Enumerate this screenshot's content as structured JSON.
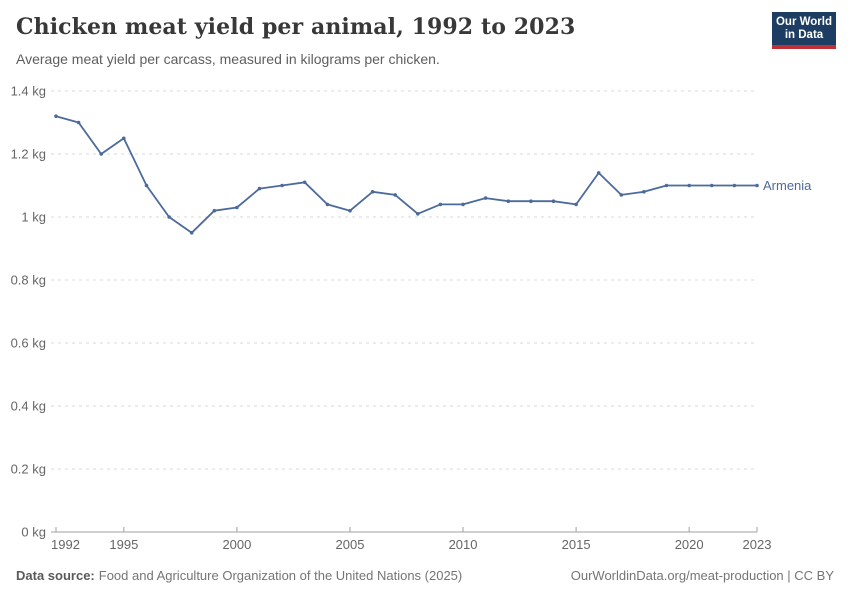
{
  "header": {
    "title": "Chicken meat yield per animal, 1992 to 2023",
    "subtitle": "Average meat yield per carcass, measured in kilograms per chicken.",
    "logo": {
      "line1": "Our World",
      "line2": "in Data"
    }
  },
  "chart_data": {
    "type": "line",
    "title": "Chicken meat yield per animal, 1992 to 2023",
    "unit": "kg",
    "xlim": [
      1992,
      2023
    ],
    "ylim": [
      0,
      1.4
    ],
    "x_ticks": [
      1992,
      1995,
      2000,
      2005,
      2010,
      2015,
      2020,
      2023
    ],
    "y_ticks": [
      0,
      0.2,
      0.4,
      0.6,
      0.8,
      1,
      1.2,
      1.4
    ],
    "y_tick_labels": [
      "0 kg",
      "0.2 kg",
      "0.4 kg",
      "0.6 kg",
      "0.8 kg",
      "1 kg",
      "1.2 kg",
      "1.4 kg"
    ],
    "grid": "dashed-horizontal",
    "legend_position": "end-of-line-label",
    "series": [
      {
        "name": "Armenia",
        "color": "#4C6A9C",
        "x": [
          1992,
          1993,
          1994,
          1995,
          1996,
          1997,
          1998,
          1999,
          2000,
          2001,
          2002,
          2003,
          2004,
          2005,
          2006,
          2007,
          2008,
          2009,
          2010,
          2011,
          2012,
          2013,
          2014,
          2015,
          2016,
          2017,
          2018,
          2019,
          2020,
          2021,
          2022,
          2023
        ],
        "values": [
          1.32,
          1.3,
          1.2,
          1.25,
          1.1,
          1.0,
          0.95,
          1.02,
          1.03,
          1.09,
          1.1,
          1.11,
          1.04,
          1.02,
          1.08,
          1.07,
          1.01,
          1.04,
          1.04,
          1.06,
          1.05,
          1.05,
          1.05,
          1.04,
          1.14,
          1.07,
          1.08,
          1.1,
          1.1,
          1.1,
          1.1,
          1.1
        ]
      }
    ]
  },
  "footer": {
    "source_label": "Data source:",
    "source_text": "Food and Agriculture Organization of the United Nations (2025)",
    "link_text": "OurWorldinData.org/meat-production | CC BY"
  },
  "colors": {
    "line": "#4C6A9C",
    "grid": "#dadada",
    "axis": "#a0a0a0",
    "tick_text": "#666666",
    "logo_bg": "#1d3d63",
    "logo_red": "#bf3036"
  }
}
